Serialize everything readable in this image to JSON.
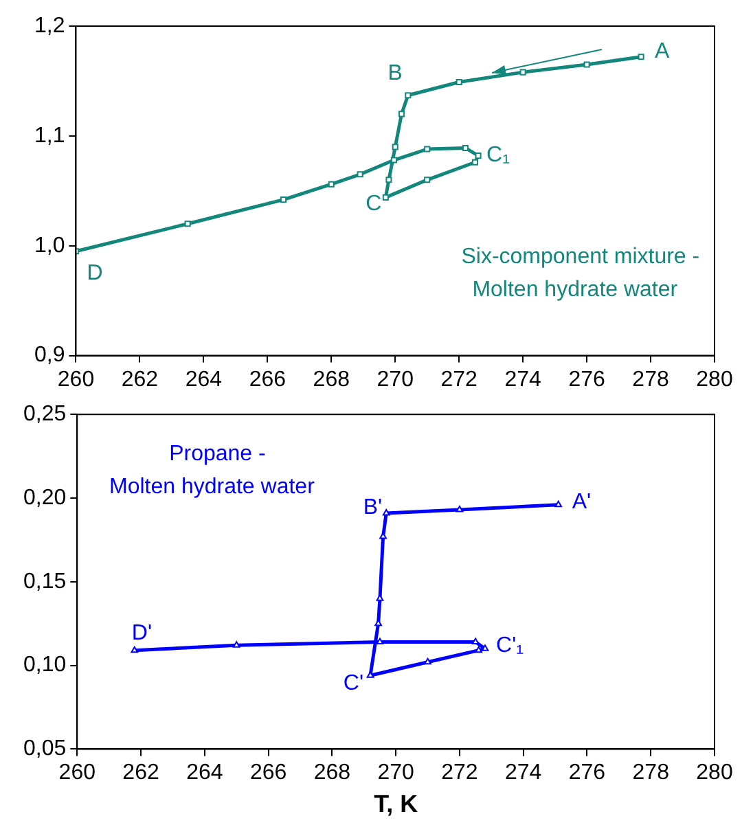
{
  "chart_data": [
    {
      "type": "line",
      "xlim": [
        260,
        280
      ],
      "xticks": [
        260,
        262,
        264,
        266,
        268,
        270,
        272,
        274,
        276,
        278,
        280
      ],
      "ylim": [
        0.9,
        1.2
      ],
      "yticks": [
        {
          "value": 0.9,
          "label": "0,9"
        },
        {
          "value": 1.0,
          "label": "1,0"
        },
        {
          "value": 1.1,
          "label": "1,1"
        },
        {
          "value": 1.2,
          "label": "1,2"
        }
      ],
      "grid": false,
      "legend": false,
      "marker": "square",
      "line_style": "solid",
      "series": [
        {
          "color": "#14877c",
          "x": [
            277.7,
            276,
            274,
            272,
            270.4,
            270.2,
            270,
            269.8,
            269.7,
            271,
            272.5,
            272.6,
            272.2,
            271,
            269.96,
            268.9,
            268,
            266.5,
            263.5,
            260
          ],
          "values": [
            1.172,
            1.165,
            1.158,
            1.149,
            1.137,
            1.12,
            1.09,
            1.06,
            1.044,
            1.06,
            1.076,
            1.082,
            1.089,
            1.088,
            1.078,
            1.065,
            1.056,
            1.042,
            1.02,
            0.995
          ]
        }
      ],
      "annotations": [
        {
          "text": "A",
          "x": 277.7,
          "y": 1.172
        },
        {
          "text": "B",
          "x": 270.4,
          "y": 1.137
        },
        {
          "text": "C",
          "x": 269.7,
          "y": 1.044
        },
        {
          "text": "C₁",
          "x": 272.6,
          "y": 1.082
        },
        {
          "text": "D",
          "x": 260,
          "y": 0.995
        },
        "Six-component mixture -\nMolten hydrate water"
      ]
    },
    {
      "type": "line",
      "xlabel": "T, K",
      "xlim": [
        260,
        280
      ],
      "xticks": [
        260,
        262,
        264,
        266,
        268,
        270,
        272,
        274,
        276,
        278,
        280
      ],
      "ylim": [
        0.05,
        0.25
      ],
      "yticks": [
        {
          "value": 0.05,
          "label": "0,05"
        },
        {
          "value": 0.1,
          "label": "0,10"
        },
        {
          "value": 0.15,
          "label": "0,15"
        },
        {
          "value": 0.2,
          "label": "0,20"
        },
        {
          "value": 0.25,
          "label": "0,25"
        }
      ],
      "grid": false,
      "legend": false,
      "marker": "triangle",
      "line_style": "solid",
      "series": [
        {
          "color": "#0000ff",
          "x": [
            275.1,
            272,
            269.7,
            269.6,
            269.5,
            269.45,
            269.2,
            271,
            272.6,
            272.8,
            272.5,
            269.5,
            265,
            261.8
          ],
          "values": [
            0.196,
            0.193,
            0.191,
            0.177,
            0.14,
            0.125,
            0.094,
            0.102,
            0.109,
            0.11,
            0.114,
            0.114,
            0.112,
            0.109
          ]
        }
      ],
      "annotations": [
        {
          "text": "A'",
          "x": 275.1,
          "y": 0.196
        },
        {
          "text": "B'",
          "x": 269.7,
          "y": 0.191
        },
        {
          "text": "C'",
          "x": 269.2,
          "y": 0.094
        },
        {
          "text": "C'₁",
          "x": 272.8,
          "y": 0.11
        },
        {
          "text": "D'",
          "x": 261.8,
          "y": 0.109
        },
        "Propane -\nMolten hydrate water"
      ]
    }
  ]
}
